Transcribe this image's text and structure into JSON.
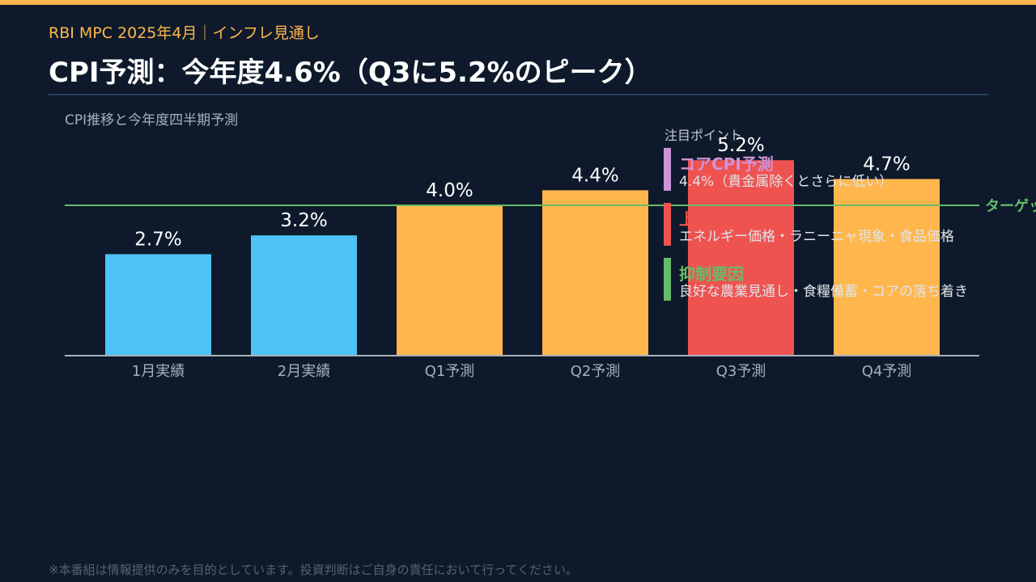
{
  "header": {
    "kicker": "RBI MPC 2025年4月｜インフレ見通し",
    "title": "CPI予測：今年度4.6%（Q3に5.2%のピーク）"
  },
  "colors": {
    "accent": "#ffb74d",
    "actual": "#4fc3f7",
    "forecast": "#ffb74d",
    "peak": "#ef5350",
    "target": "#66bb6a",
    "core": "#ce93d8"
  },
  "chart_data": {
    "type": "bar",
    "subtitle": "CPI推移と今年度四半期予測",
    "categories": [
      "1月実績",
      "2月実績",
      "Q1予測",
      "Q2予測",
      "Q3予測",
      "Q4予測"
    ],
    "values": [
      2.7,
      3.2,
      4.0,
      4.4,
      5.2,
      4.7
    ],
    "value_labels": [
      "2.7%",
      "3.2%",
      "4.0%",
      "4.4%",
      "5.2%",
      "4.7%"
    ],
    "bar_colors": [
      "#4fc3f7",
      "#4fc3f7",
      "#ffb74d",
      "#ffb74d",
      "#ef5350",
      "#ffb74d"
    ],
    "target_line": {
      "value": 4.0,
      "label": "ターゲット"
    },
    "ylim": [
      0,
      5.2
    ],
    "grid": false
  },
  "notes": {
    "title": "注目ポイント",
    "items": [
      {
        "title": "コアCPI予測",
        "desc": "4.4%（貴金属除くとさらに低い）",
        "color": "#ce93d8"
      },
      {
        "title": "上",
        "desc": "エネルギー価格・ラニーニャ現象・食品価格",
        "color": "#ef5350"
      },
      {
        "title": "抑制要因",
        "desc": "良好な農業見通し・食糧備蓄・コアの落ち着き",
        "color": "#66bb6a"
      }
    ]
  },
  "footer": {
    "disclaimer": "※本番組は情報提供のみを目的としています。投資判断はご自身の責任において行ってください。"
  }
}
